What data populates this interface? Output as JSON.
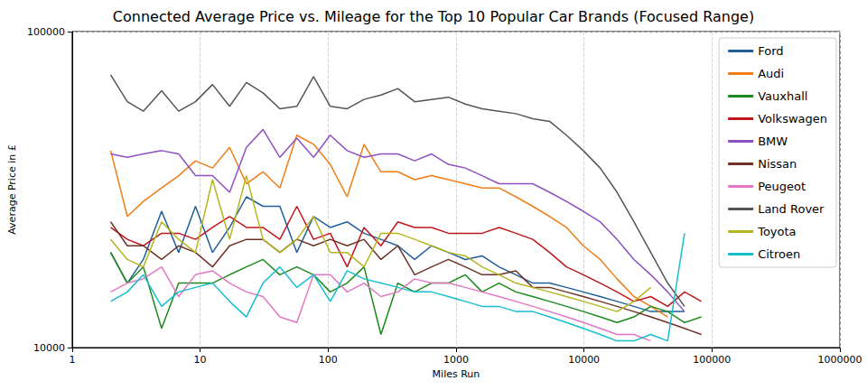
{
  "chart_data": {
    "type": "line",
    "title": "Connected Average Price vs. Mileage for the Top 10 Popular Car Brands (Focused Range)",
    "x_label": "Miles Run",
    "y_label": "Average Price in £",
    "log": true,
    "grid": true,
    "legend": "upper right",
    "xlim": [
      1,
      1000000
    ],
    "ylim": [
      10000,
      100000
    ],
    "xticks": [
      1,
      10,
      100,
      1000,
      10000,
      100000,
      1000000
    ],
    "yticks": [
      10000,
      100000
    ],
    "x": [
      2,
      2.7,
      3.6,
      5,
      6.8,
      9.2,
      12.5,
      17,
      23,
      31,
      42,
      57,
      77,
      104,
      141,
      191,
      259,
      351,
      475,
      644,
      872,
      1181,
      1600,
      2167,
      2935,
      3976,
      5385,
      7295,
      9881,
      13385,
      18132,
      24562,
      33272,
      45071,
      61054,
      82705
    ],
    "series": [
      {
        "name": "Ford",
        "color": "#1f5f99",
        "values": [
          20000,
          16000,
          19000,
          27000,
          20000,
          28000,
          20000,
          24000,
          30000,
          28000,
          28000,
          20000,
          26000,
          24000,
          25000,
          23000,
          22000,
          21000,
          19000,
          21000,
          20000,
          19000,
          19500,
          18000,
          17000,
          16000,
          16000,
          15500,
          15000,
          14500,
          14000,
          13500,
          13000,
          13000,
          13000,
          null
        ]
      },
      {
        "name": "Audi",
        "color": "#f07d17",
        "values": [
          42000,
          26000,
          29000,
          32000,
          35000,
          39000,
          37000,
          43000,
          33000,
          36000,
          32000,
          47000,
          44000,
          38000,
          30000,
          44000,
          36000,
          36000,
          34000,
          35000,
          34000,
          33000,
          32000,
          32000,
          30000,
          28000,
          26000,
          24000,
          21000,
          19000,
          16500,
          14500,
          13500,
          12500,
          null,
          null
        ]
      },
      {
        "name": "Vauxhall",
        "color": "#1a8a1a",
        "values": [
          20000,
          16000,
          18000,
          11500,
          16000,
          16000,
          16000,
          17000,
          18000,
          19000,
          17000,
          18000,
          17000,
          15000,
          16000,
          18000,
          11000,
          16000,
          15000,
          16000,
          16000,
          17000,
          15000,
          16000,
          15000,
          14500,
          14000,
          13500,
          13000,
          12500,
          12000,
          12500,
          13500,
          13000,
          12000,
          12500
        ]
      },
      {
        "name": "Volkswagen",
        "color": "#c0171d",
        "values": [
          24000,
          22000,
          21000,
          23000,
          23000,
          22000,
          24000,
          26000,
          24000,
          24000,
          22000,
          28000,
          22000,
          23000,
          18000,
          24000,
          21000,
          25000,
          24000,
          24000,
          23000,
          23000,
          23000,
          24000,
          23000,
          22000,
          20000,
          18000,
          17000,
          16000,
          15000,
          14000,
          14500,
          13500,
          15000,
          14000
        ]
      },
      {
        "name": "BMW",
        "color": "#8e4fc0",
        "values": [
          41000,
          40000,
          41000,
          42000,
          41000,
          35000,
          35000,
          31000,
          43000,
          49000,
          40000,
          46000,
          40000,
          47000,
          42000,
          40000,
          41000,
          41000,
          39000,
          41000,
          38000,
          37000,
          35000,
          33000,
          33000,
          33000,
          31000,
          29000,
          27000,
          25000,
          22000,
          19000,
          17000,
          15000,
          13000,
          null
        ]
      },
      {
        "name": "Nissan",
        "color": "#6e3326",
        "values": [
          25000,
          21000,
          21000,
          19000,
          21000,
          20000,
          18000,
          21000,
          22000,
          22000,
          20000,
          22000,
          21000,
          22000,
          21000,
          22000,
          19000,
          21000,
          17000,
          18000,
          19000,
          18000,
          17000,
          17000,
          17500,
          15500,
          15500,
          15000,
          14500,
          14000,
          13500,
          13000,
          12500,
          12000,
          11500,
          11000
        ]
      },
      {
        "name": "Peugeot",
        "color": "#e377c2",
        "values": [
          15000,
          16000,
          16500,
          18000,
          14500,
          17000,
          17500,
          16000,
          15000,
          14500,
          12500,
          12000,
          17000,
          17000,
          15000,
          16000,
          14500,
          15000,
          16500,
          16000,
          16000,
          15500,
          15000,
          14500,
          14000,
          13500,
          13000,
          12500,
          12000,
          11500,
          11000,
          11000,
          10500,
          null,
          null,
          null
        ]
      },
      {
        "name": "Land Rover",
        "color": "#555555",
        "values": [
          73000,
          60000,
          56000,
          65000,
          56000,
          60000,
          68000,
          58000,
          69000,
          64000,
          57000,
          58000,
          72000,
          58000,
          57000,
          61000,
          63000,
          66000,
          60000,
          61000,
          62000,
          59000,
          57000,
          56000,
          55000,
          53000,
          52000,
          47000,
          42000,
          37000,
          31000,
          25000,
          20000,
          16000,
          13500,
          null
        ]
      },
      {
        "name": "Toyota",
        "color": "#b5b520",
        "values": [
          22000,
          19000,
          18000,
          25000,
          22000,
          20000,
          34000,
          22000,
          35000,
          22000,
          20000,
          22000,
          26000,
          20000,
          20000,
          18000,
          23000,
          23000,
          22000,
          21000,
          20000,
          19500,
          18000,
          17000,
          16000,
          15500,
          15000,
          14500,
          14000,
          13500,
          13000,
          14000,
          15500,
          null,
          null,
          null
        ]
      },
      {
        "name": "Citroen",
        "color": "#17becf",
        "values": [
          14000,
          15000,
          17000,
          13500,
          15000,
          15500,
          16000,
          14000,
          12500,
          16000,
          18000,
          15500,
          17000,
          14000,
          17500,
          16500,
          16000,
          15500,
          15000,
          15000,
          14500,
          14000,
          13500,
          13500,
          13000,
          13000,
          12500,
          12000,
          11500,
          11000,
          10500,
          10500,
          11000,
          10500,
          23000,
          null
        ]
      }
    ]
  }
}
